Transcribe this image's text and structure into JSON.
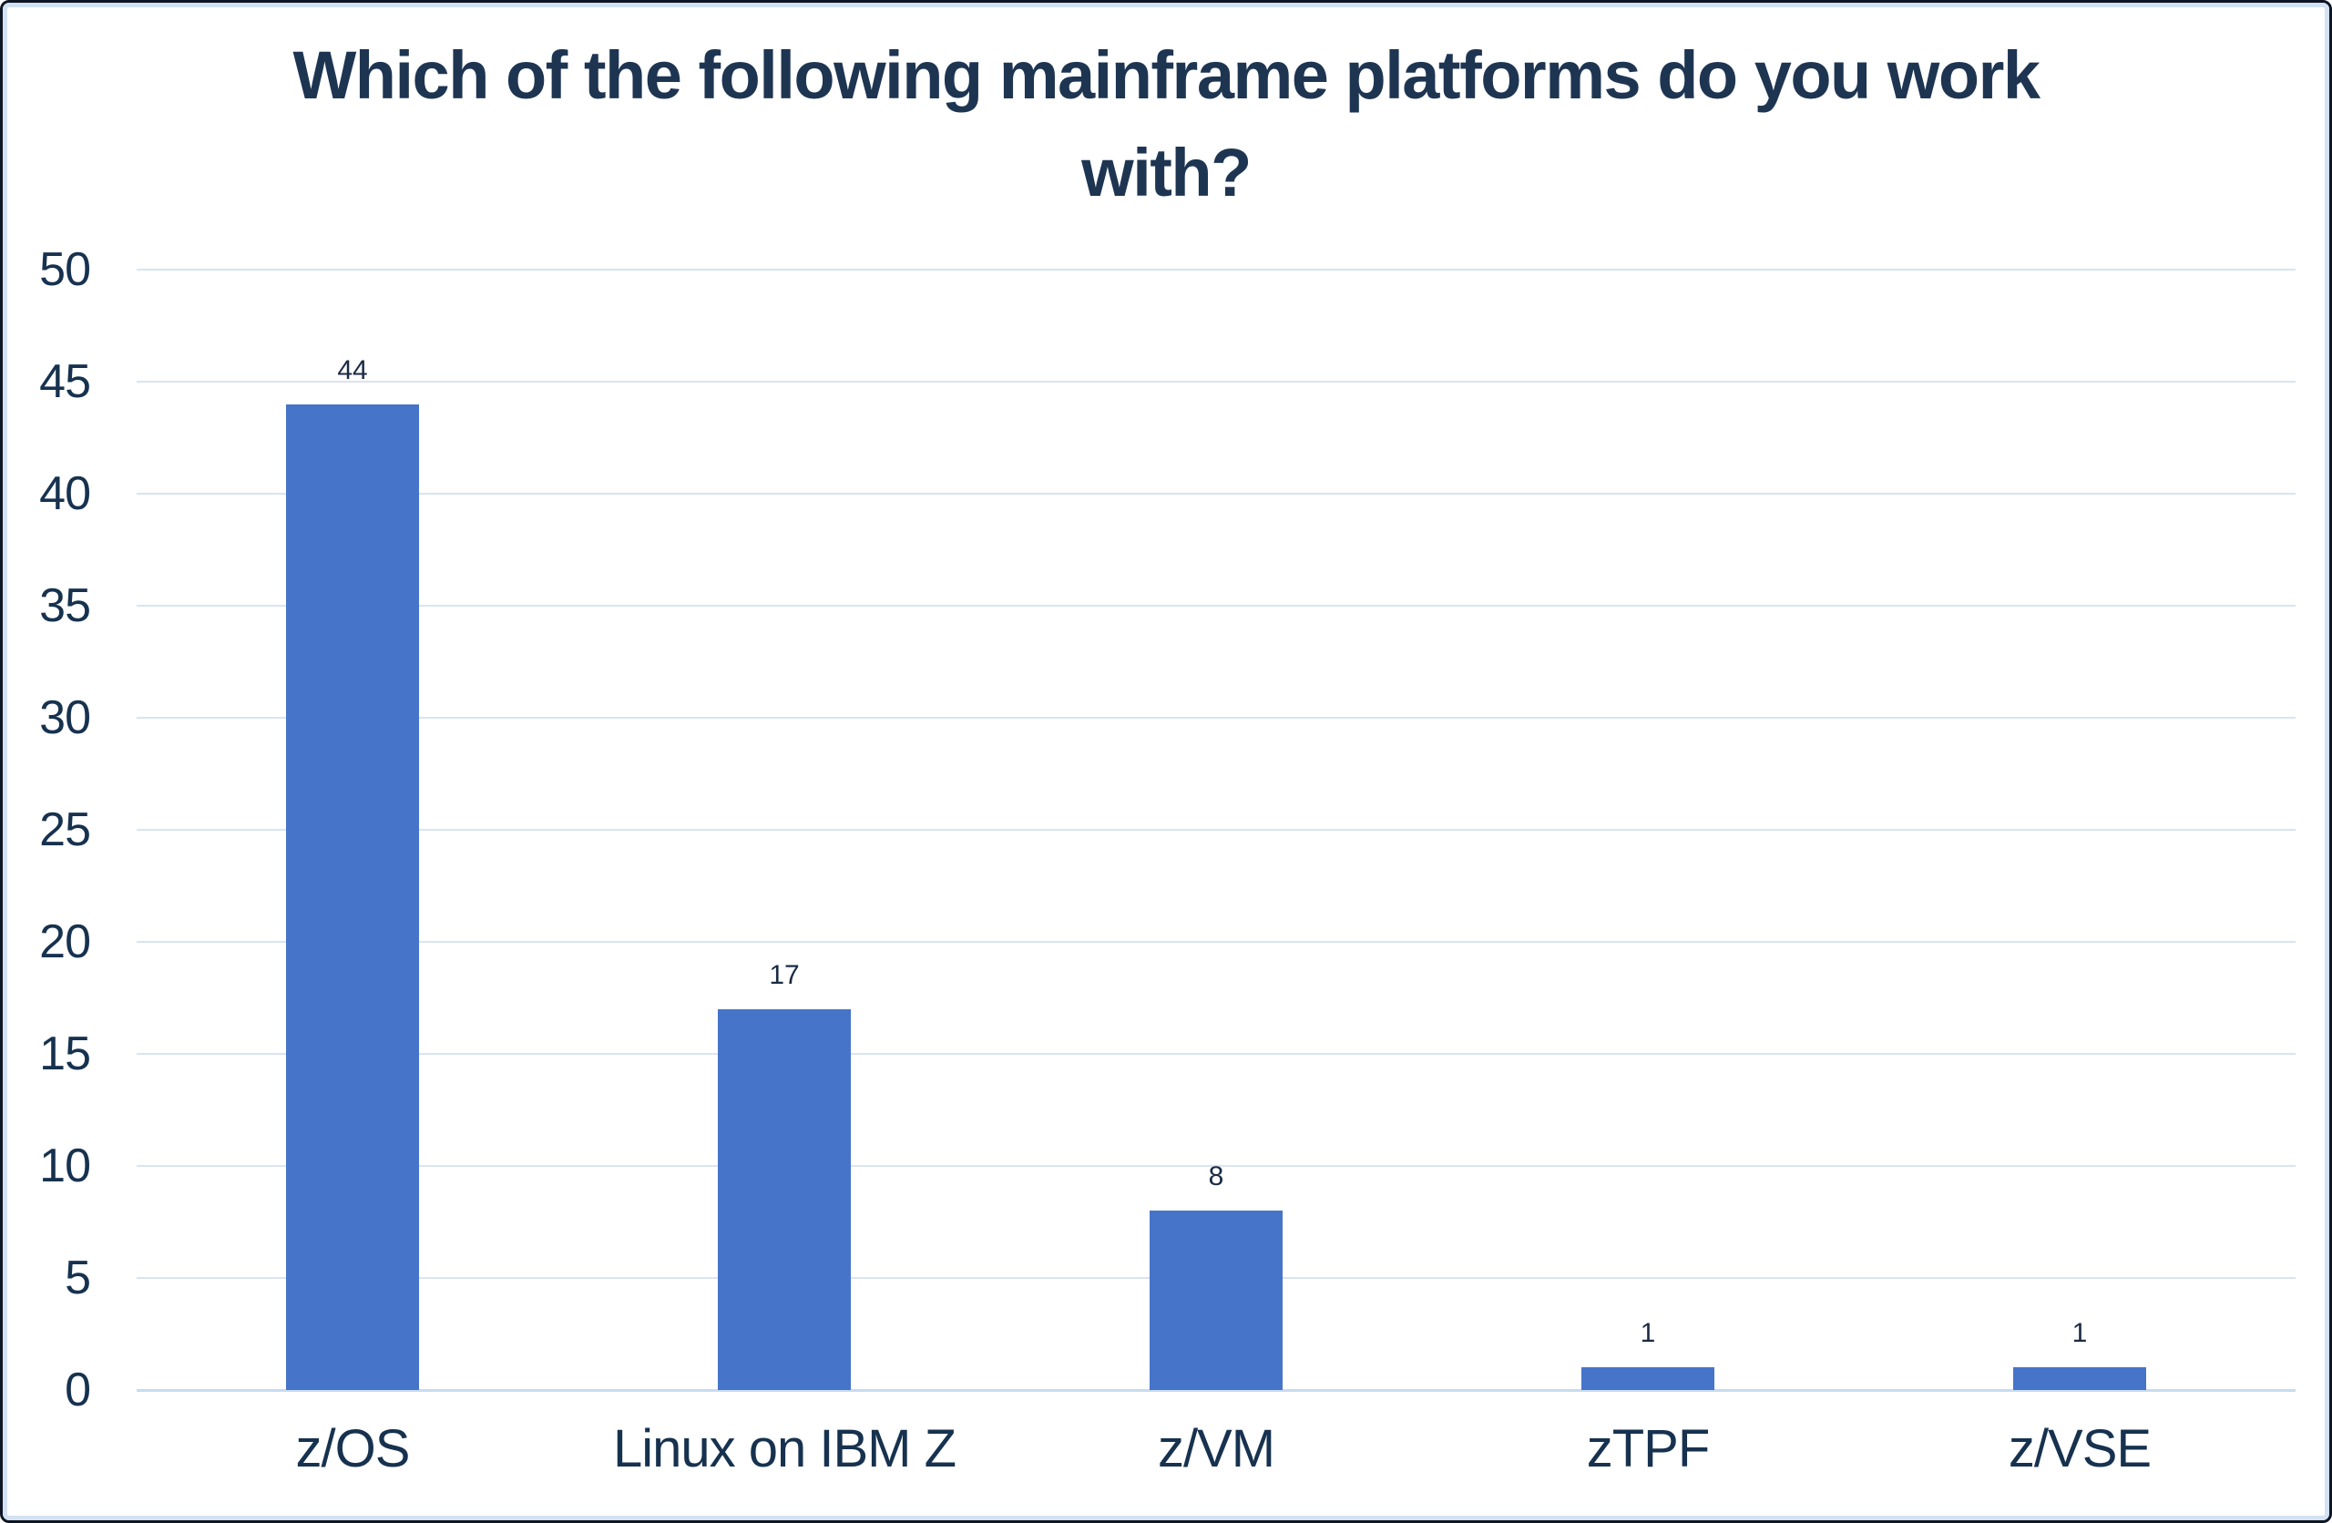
{
  "chart_data": {
    "type": "bar",
    "title": "Which of the following mainframe platforms do you work with?",
    "title_lines": [
      "Which of the following mainframe platforms do you work",
      "with?"
    ],
    "categories": [
      "z/OS",
      "Linux on IBM Z",
      "z/VM",
      "zTPF",
      "z/VSE"
    ],
    "values": [
      44,
      17,
      8,
      1,
      1
    ],
    "data_labels": [
      "44",
      "17",
      "8",
      "1",
      "1"
    ],
    "xlabel": "",
    "ylabel": "",
    "ylim": [
      0,
      50
    ],
    "ytick_step": 5,
    "yticks": [
      0,
      5,
      10,
      15,
      20,
      25,
      30,
      35,
      40,
      45,
      50
    ],
    "grid": "horizontal-only",
    "legend": "none",
    "colors": {
      "bar": "#4674C9",
      "gridline": "#D8E4F4",
      "baseline": "#C6DCF0",
      "title_text": "#1E3552",
      "axis_text": "#17324F",
      "value_label_text": "#1A2B44",
      "background": "#FFFFFF",
      "frame_outer_border": "#0E1624",
      "frame_inner_border": "#D3E2F4"
    }
  }
}
